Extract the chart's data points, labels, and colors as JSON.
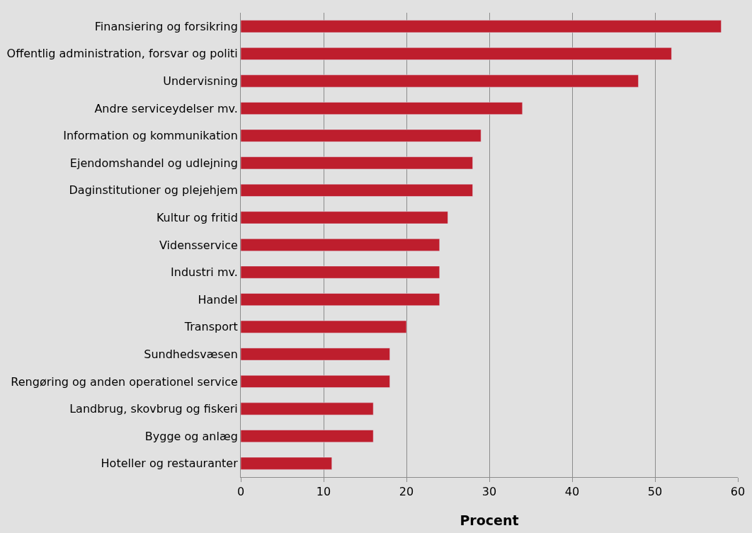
{
  "chart_data": {
    "type": "bar",
    "orientation": "horizontal",
    "xlabel": "Procent",
    "categories": [
      "Finansiering og forsikring",
      "Offentlig administration, forsvar og politi",
      "Undervisning",
      "Andre serviceydelser mv.",
      "Information og kommunikation",
      "Ejendomshandel og udlejning",
      "Daginstitutioner og plejehjem",
      "Kultur og fritid",
      "Vidensservice",
      "Industri mv.",
      "Handel",
      "Transport",
      "Sundhedsvæsen",
      "Rengøring og anden operationel service",
      "Landbrug, skovbrug og fiskeri",
      "Bygge og anlæg",
      "Hoteller og restauranter"
    ],
    "values": [
      58,
      52,
      48,
      34,
      29,
      28,
      28,
      25,
      24,
      24,
      24,
      20,
      18,
      18,
      16,
      16,
      11
    ],
    "color": "#be1e2d",
    "xlim": [
      0,
      60
    ],
    "xticks": [
      0,
      10,
      20,
      30,
      40,
      50,
      60
    ],
    "grid": "x"
  }
}
